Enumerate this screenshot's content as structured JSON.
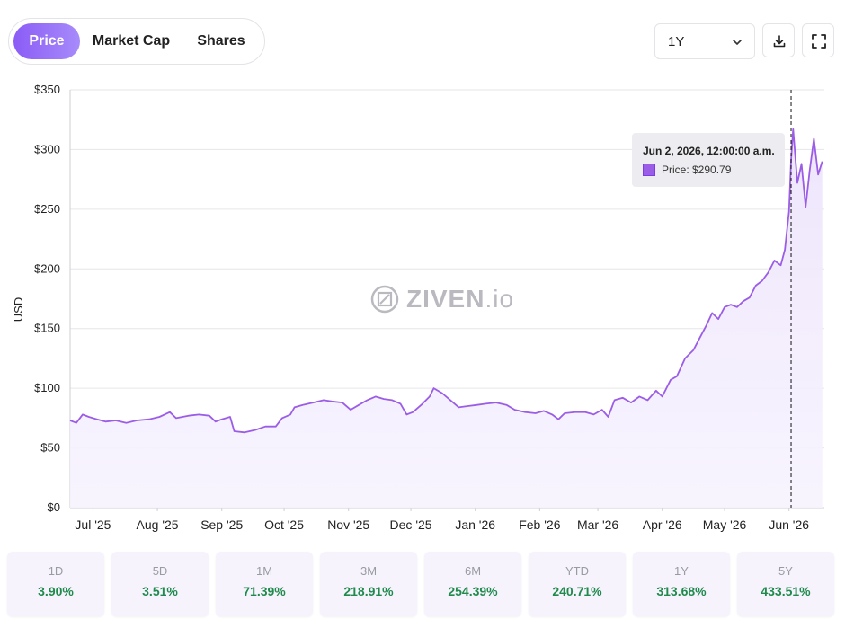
{
  "tabs": [
    {
      "label": "Price",
      "active": true
    },
    {
      "label": "Market Cap",
      "active": false
    },
    {
      "label": "Shares",
      "active": false
    }
  ],
  "range": {
    "selected": "1Y"
  },
  "icons": {
    "download": "download-icon",
    "fullscreen": "fullscreen-icon",
    "dropdown": "chevron-down-icon"
  },
  "watermark": {
    "brand": "ZIVEN",
    "suffix": ".io"
  },
  "tooltip": {
    "title": "Jun 2, 2026, 12:00:00 a.m.",
    "label": "Price: $290.79"
  },
  "colors": {
    "accent": "#9b5de5",
    "positive": "#1f8a4c"
  },
  "chart_data": {
    "type": "area",
    "ylabel": "USD",
    "ylim": [
      0,
      350
    ],
    "yticks": [
      0,
      50,
      100,
      150,
      200,
      250,
      300,
      350
    ],
    "ytick_labels": [
      "$0",
      "$50",
      "$100",
      "$150",
      "$200",
      "$250",
      "$300",
      "$350"
    ],
    "xtick_labels": [
      "Jul '25",
      "Aug '25",
      "Sep '25",
      "Oct '25",
      "Nov '25",
      "Dec '25",
      "Jan '26",
      "Feb '26",
      "Mar '26",
      "Apr '26",
      "May '26",
      "Jun '26"
    ],
    "xtick_dates": [
      "2025-07-01",
      "2025-08-01",
      "2025-09-01",
      "2025-10-01",
      "2025-11-01",
      "2025-12-01",
      "2026-01-01",
      "2026-02-01",
      "2026-03-01",
      "2026-04-01",
      "2026-05-01",
      "2026-06-01"
    ],
    "xlim": [
      "2025-06-20",
      "2026-06-18"
    ],
    "grid": true,
    "crosshair_date": "2026-06-02",
    "series": [
      {
        "name": "Price",
        "points": [
          [
            "2025-06-20",
            73
          ],
          [
            "2025-06-23",
            71
          ],
          [
            "2025-06-26",
            78
          ],
          [
            "2025-06-29",
            76
          ],
          [
            "2025-07-03",
            74
          ],
          [
            "2025-07-07",
            72
          ],
          [
            "2025-07-12",
            73
          ],
          [
            "2025-07-17",
            71
          ],
          [
            "2025-07-22",
            73
          ],
          [
            "2025-07-28",
            74
          ],
          [
            "2025-08-02",
            76
          ],
          [
            "2025-08-07",
            80
          ],
          [
            "2025-08-10",
            75
          ],
          [
            "2025-08-16",
            77
          ],
          [
            "2025-08-21",
            78
          ],
          [
            "2025-08-26",
            77
          ],
          [
            "2025-08-29",
            72
          ],
          [
            "2025-09-01",
            74
          ],
          [
            "2025-09-05",
            76
          ],
          [
            "2025-09-07",
            64
          ],
          [
            "2025-09-12",
            63
          ],
          [
            "2025-09-17",
            65
          ],
          [
            "2025-09-22",
            68
          ],
          [
            "2025-09-27",
            68
          ],
          [
            "2025-09-30",
            75
          ],
          [
            "2025-10-04",
            78
          ],
          [
            "2025-10-06",
            84
          ],
          [
            "2025-10-10",
            86
          ],
          [
            "2025-10-15",
            88
          ],
          [
            "2025-10-20",
            90
          ],
          [
            "2025-10-24",
            89
          ],
          [
            "2025-10-29",
            88
          ],
          [
            "2025-11-02",
            82
          ],
          [
            "2025-11-06",
            86
          ],
          [
            "2025-11-10",
            90
          ],
          [
            "2025-11-14",
            93
          ],
          [
            "2025-11-18",
            91
          ],
          [
            "2025-11-22",
            90
          ],
          [
            "2025-11-26",
            87
          ],
          [
            "2025-11-29",
            78
          ],
          [
            "2025-12-02",
            80
          ],
          [
            "2025-12-06",
            86
          ],
          [
            "2025-12-10",
            93
          ],
          [
            "2025-12-12",
            100
          ],
          [
            "2025-12-16",
            96
          ],
          [
            "2025-12-20",
            90
          ],
          [
            "2025-12-24",
            84
          ],
          [
            "2025-12-28",
            85
          ],
          [
            "2026-01-02",
            86
          ],
          [
            "2026-01-06",
            87
          ],
          [
            "2026-01-11",
            88
          ],
          [
            "2026-01-16",
            86
          ],
          [
            "2026-01-20",
            82
          ],
          [
            "2026-01-25",
            80
          ],
          [
            "2026-01-30",
            79
          ],
          [
            "2026-02-03",
            81
          ],
          [
            "2026-02-07",
            78
          ],
          [
            "2026-02-10",
            74
          ],
          [
            "2026-02-13",
            79
          ],
          [
            "2026-02-18",
            80
          ],
          [
            "2026-02-23",
            80
          ],
          [
            "2026-02-27",
            78
          ],
          [
            "2026-03-03",
            82
          ],
          [
            "2026-03-06",
            76
          ],
          [
            "2026-03-09",
            90
          ],
          [
            "2026-03-13",
            92
          ],
          [
            "2026-03-17",
            88
          ],
          [
            "2026-03-21",
            93
          ],
          [
            "2026-03-25",
            90
          ],
          [
            "2026-03-29",
            98
          ],
          [
            "2026-04-01",
            93
          ],
          [
            "2026-04-05",
            107
          ],
          [
            "2026-04-08",
            110
          ],
          [
            "2026-04-12",
            125
          ],
          [
            "2026-04-16",
            132
          ],
          [
            "2026-04-19",
            142
          ],
          [
            "2026-04-22",
            152
          ],
          [
            "2026-04-25",
            163
          ],
          [
            "2026-04-28",
            158
          ],
          [
            "2026-05-01",
            168
          ],
          [
            "2026-05-04",
            170
          ],
          [
            "2026-05-07",
            168
          ],
          [
            "2026-05-10",
            173
          ],
          [
            "2026-05-13",
            176
          ],
          [
            "2026-05-16",
            186
          ],
          [
            "2026-05-19",
            190
          ],
          [
            "2026-05-22",
            197
          ],
          [
            "2026-05-25",
            207
          ],
          [
            "2026-05-28",
            203
          ],
          [
            "2026-05-30",
            216
          ],
          [
            "2026-06-01",
            248
          ],
          [
            "2026-06-02",
            291
          ],
          [
            "2026-06-03",
            317
          ],
          [
            "2026-06-05",
            272
          ],
          [
            "2026-06-07",
            288
          ],
          [
            "2026-06-09",
            252
          ],
          [
            "2026-06-11",
            283
          ],
          [
            "2026-06-13",
            309
          ],
          [
            "2026-06-15",
            279
          ],
          [
            "2026-06-17",
            290
          ]
        ]
      }
    ]
  },
  "performance": [
    {
      "period": "1D",
      "change": "3.90%"
    },
    {
      "period": "5D",
      "change": "3.51%"
    },
    {
      "period": "1M",
      "change": "71.39%"
    },
    {
      "period": "3M",
      "change": "218.91%"
    },
    {
      "period": "6M",
      "change": "254.39%"
    },
    {
      "period": "YTD",
      "change": "240.71%"
    },
    {
      "period": "1Y",
      "change": "313.68%"
    },
    {
      "period": "5Y",
      "change": "433.51%"
    }
  ]
}
